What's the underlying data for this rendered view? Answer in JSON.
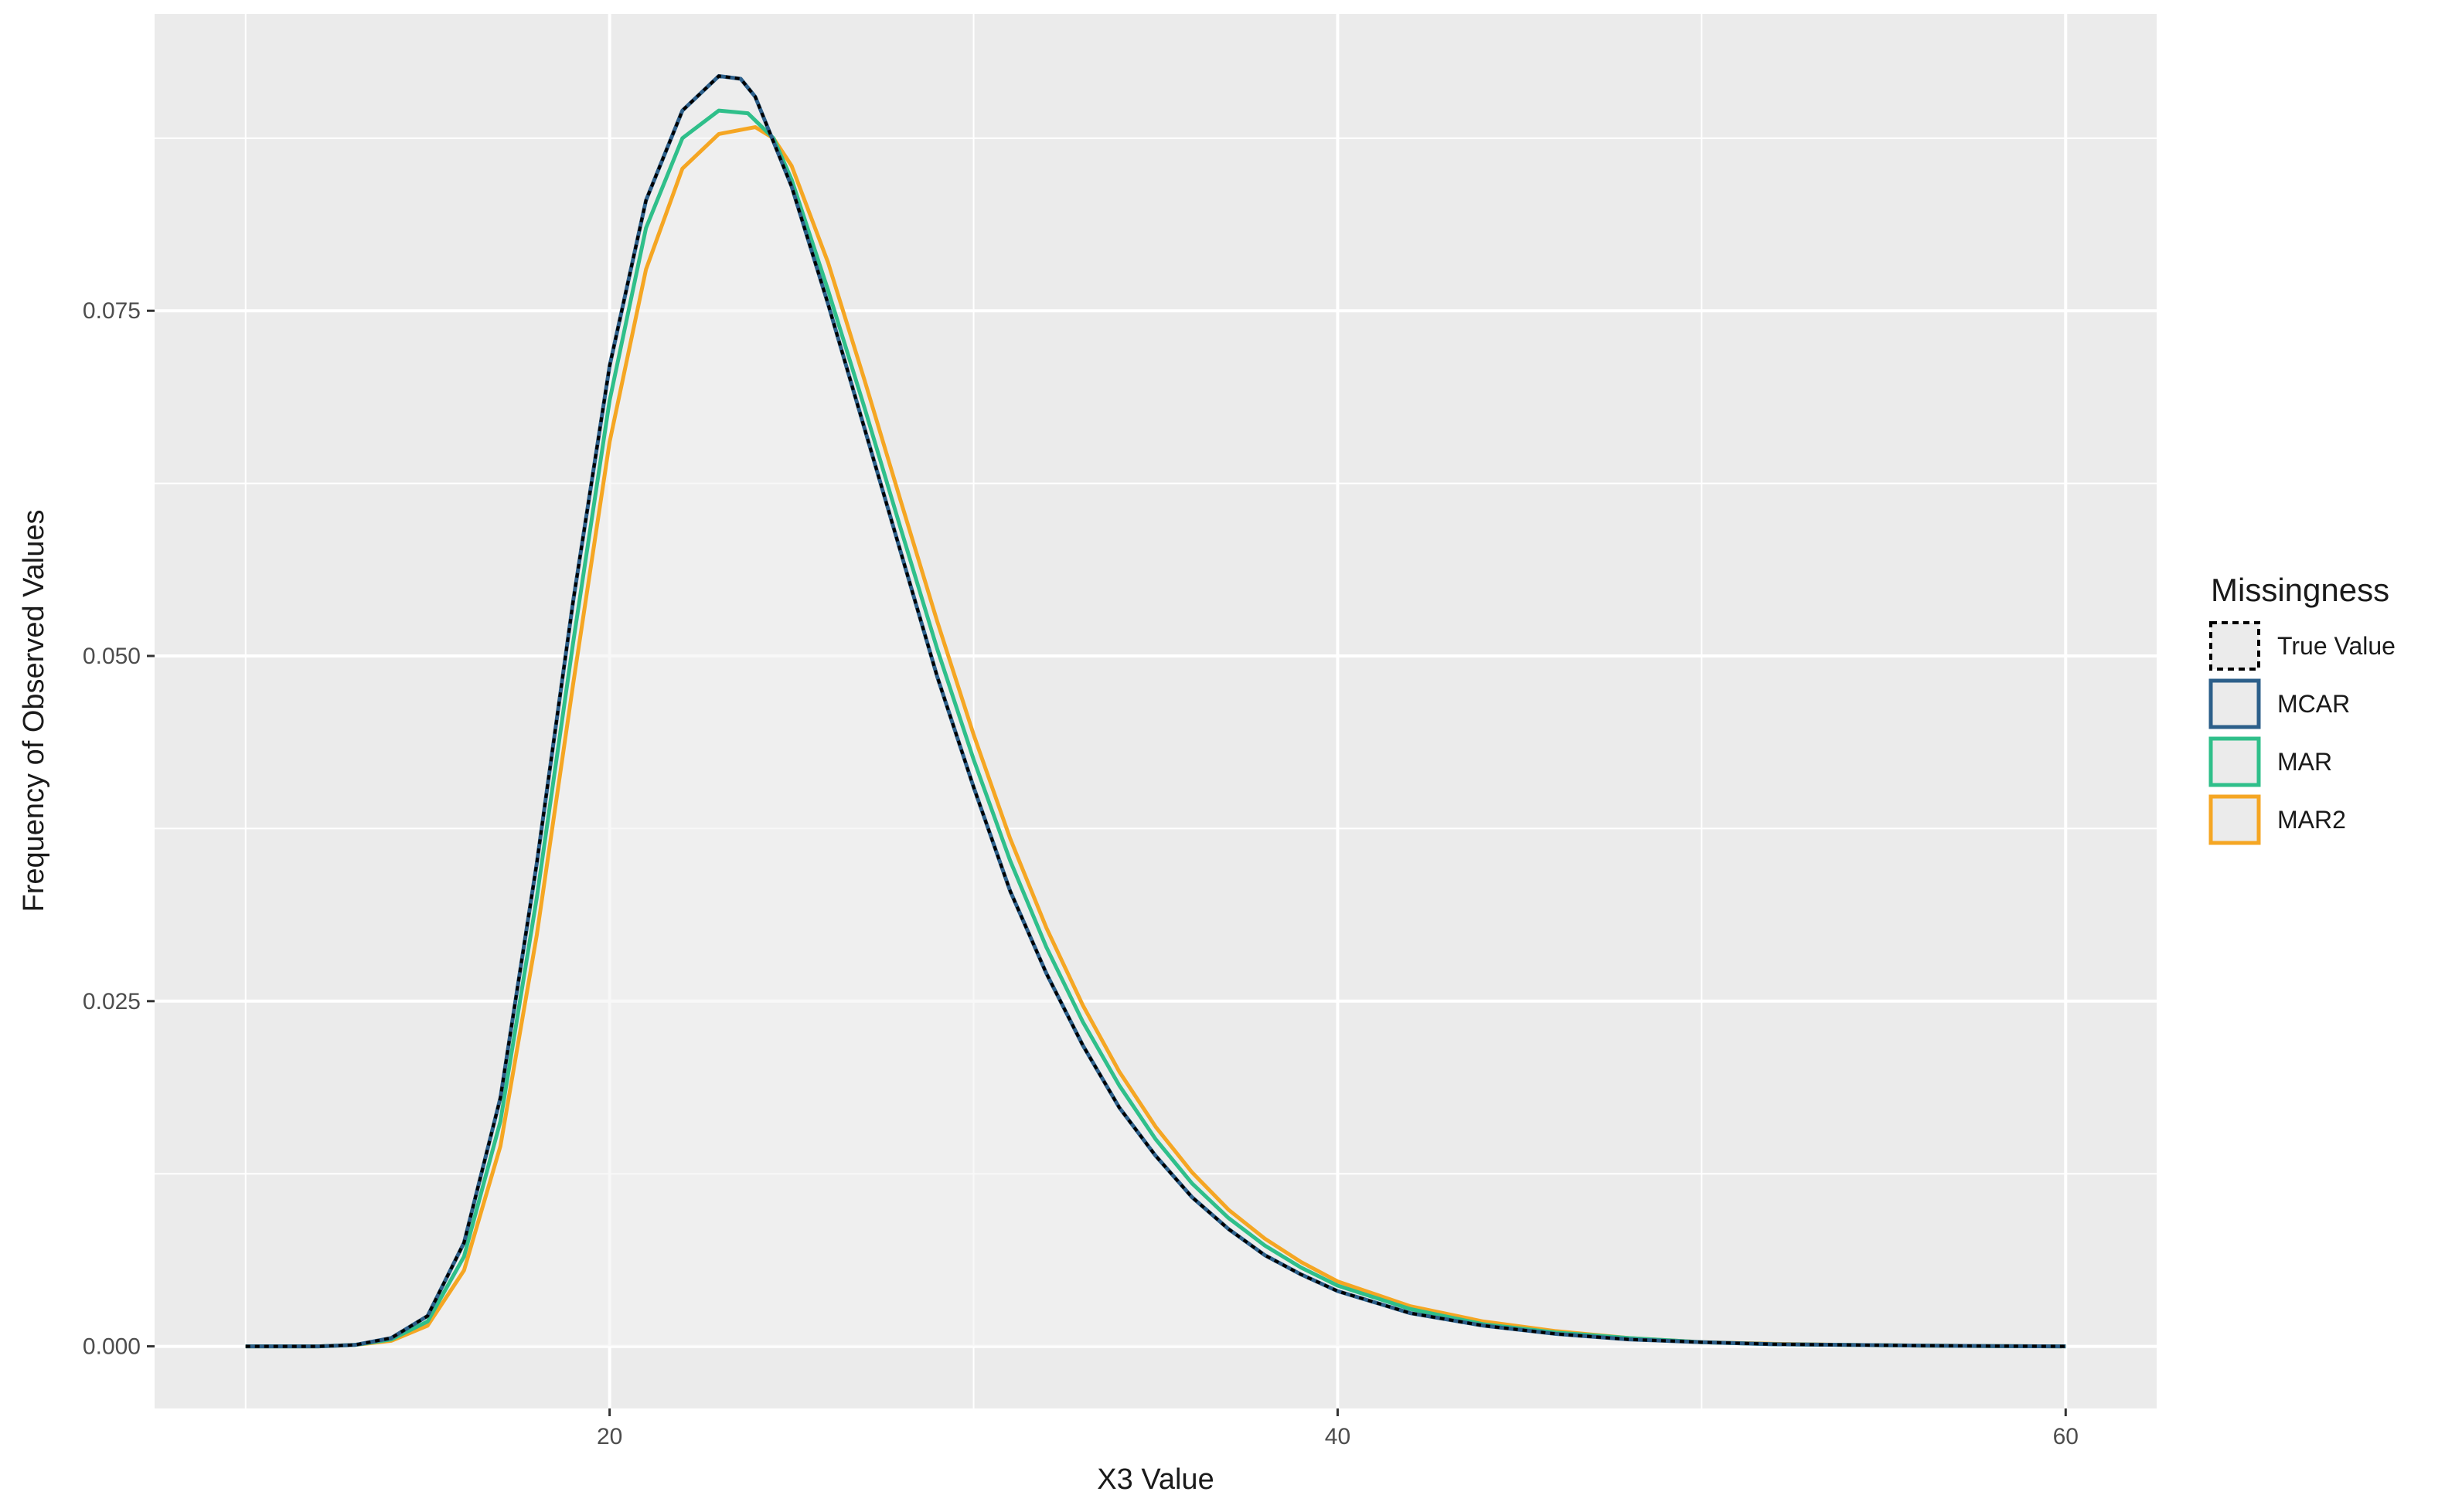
{
  "chart_data": {
    "type": "line",
    "title": "",
    "xlabel": "X3 Value",
    "ylabel": "Frequency of Observed Values",
    "xlim": [
      7.5,
      62.5
    ],
    "ylim": [
      -0.0045,
      0.0965
    ],
    "x_ticks": [
      20,
      40,
      60
    ],
    "x_tick_labels": [
      "20",
      "40",
      "60"
    ],
    "y_ticks": [
      0.0,
      0.025,
      0.05,
      0.075
    ],
    "y_tick_labels": [
      "0.000",
      "0.025",
      "0.050",
      "0.075"
    ],
    "x_minor_gridlines": [
      10,
      30,
      50
    ],
    "y_minor_gridlines": [
      0.0125,
      0.0375,
      0.0625,
      0.0875
    ],
    "grid": true,
    "background_color": "#ebebeb",
    "legend": {
      "title": "Missingness",
      "position": "right",
      "entries": [
        "True Value",
        "MCAR",
        "MAR",
        "MAR2"
      ]
    },
    "series": [
      {
        "name": "True Value",
        "color": "#000000",
        "dashed": true,
        "x": [
          10,
          12,
          13,
          14,
          15,
          16,
          17,
          18,
          19,
          20,
          21,
          22,
          23,
          23.6,
          24,
          25,
          26,
          27,
          28,
          29,
          30,
          31,
          32,
          33,
          34,
          35,
          36,
          37,
          38,
          39,
          40,
          42,
          44,
          46,
          48,
          50,
          52,
          54,
          56,
          58,
          60
        ],
        "values": [
          0,
          0,
          0.0001,
          0.0006,
          0.0022,
          0.0075,
          0.018,
          0.035,
          0.054,
          0.071,
          0.083,
          0.0895,
          0.092,
          0.0918,
          0.0905,
          0.084,
          0.0755,
          0.0665,
          0.0575,
          0.0485,
          0.0405,
          0.033,
          0.027,
          0.0218,
          0.0173,
          0.0138,
          0.0108,
          0.0085,
          0.0066,
          0.0052,
          0.004,
          0.0024,
          0.0015,
          0.0009,
          0.0005,
          0.0003,
          0.00015,
          0.0001,
          5e-05,
          2e-05,
          0
        ]
      },
      {
        "name": "MCAR",
        "color": "#2c5f8a",
        "dashed": false,
        "x": [
          10,
          12,
          13,
          14,
          15,
          16,
          17,
          18,
          19,
          20,
          21,
          22,
          23,
          23.6,
          24,
          25,
          26,
          27,
          28,
          29,
          30,
          31,
          32,
          33,
          34,
          35,
          36,
          37,
          38,
          39,
          40,
          42,
          44,
          46,
          48,
          50,
          52,
          54,
          56,
          58,
          60
        ],
        "values": [
          0,
          0,
          0.0001,
          0.0006,
          0.0022,
          0.0075,
          0.018,
          0.035,
          0.054,
          0.071,
          0.083,
          0.0895,
          0.092,
          0.0918,
          0.0905,
          0.084,
          0.0755,
          0.0665,
          0.0575,
          0.0485,
          0.0405,
          0.033,
          0.027,
          0.0218,
          0.0173,
          0.0138,
          0.0108,
          0.0085,
          0.0066,
          0.0052,
          0.004,
          0.0024,
          0.0015,
          0.0009,
          0.0005,
          0.0003,
          0.00015,
          0.0001,
          5e-05,
          2e-05,
          0
        ]
      },
      {
        "name": "MAR",
        "color": "#2fbf8a",
        "dashed": false,
        "x": [
          10,
          12,
          13,
          14,
          15,
          16,
          17,
          18,
          19,
          20,
          21,
          22,
          23,
          23.8,
          24.5,
          25,
          26,
          27,
          28,
          29,
          30,
          31,
          32,
          33,
          34,
          35,
          36,
          37,
          38,
          39,
          40,
          42,
          44,
          46,
          48,
          50,
          52,
          54,
          56,
          58,
          60
        ],
        "values": [
          0,
          0,
          0.0001,
          0.0005,
          0.0018,
          0.0065,
          0.0163,
          0.0325,
          0.051,
          0.0685,
          0.081,
          0.0875,
          0.0895,
          0.0893,
          0.0875,
          0.0845,
          0.0765,
          0.068,
          0.0592,
          0.0505,
          0.0425,
          0.0352,
          0.0289,
          0.0235,
          0.0189,
          0.015,
          0.0118,
          0.0093,
          0.0073,
          0.0057,
          0.0044,
          0.0027,
          0.0016,
          0.001,
          0.0006,
          0.0003,
          0.00015,
          0.0001,
          5e-05,
          2e-05,
          0
        ]
      },
      {
        "name": "MAR2",
        "color": "#f5a623",
        "dashed": false,
        "x": [
          10,
          12,
          13,
          14,
          15,
          16,
          17,
          18,
          19,
          20,
          21,
          22,
          23,
          24,
          24.5,
          25,
          26,
          27,
          28,
          29,
          30,
          31,
          32,
          33,
          34,
          35,
          36,
          37,
          38,
          39,
          40,
          42,
          44,
          46,
          48,
          50,
          52,
          54,
          56,
          58,
          60
        ],
        "values": [
          0,
          0,
          0.0001,
          0.0004,
          0.0015,
          0.0055,
          0.0145,
          0.0298,
          0.048,
          0.0655,
          0.078,
          0.0853,
          0.0878,
          0.0883,
          0.0875,
          0.0855,
          0.0785,
          0.07,
          0.0612,
          0.0525,
          0.0443,
          0.0368,
          0.0303,
          0.0247,
          0.0199,
          0.0159,
          0.0126,
          0.0099,
          0.0078,
          0.0061,
          0.0047,
          0.0029,
          0.0018,
          0.0011,
          0.0006,
          0.0003,
          0.00018,
          0.0001,
          5e-05,
          2e-05,
          0
        ]
      }
    ]
  }
}
